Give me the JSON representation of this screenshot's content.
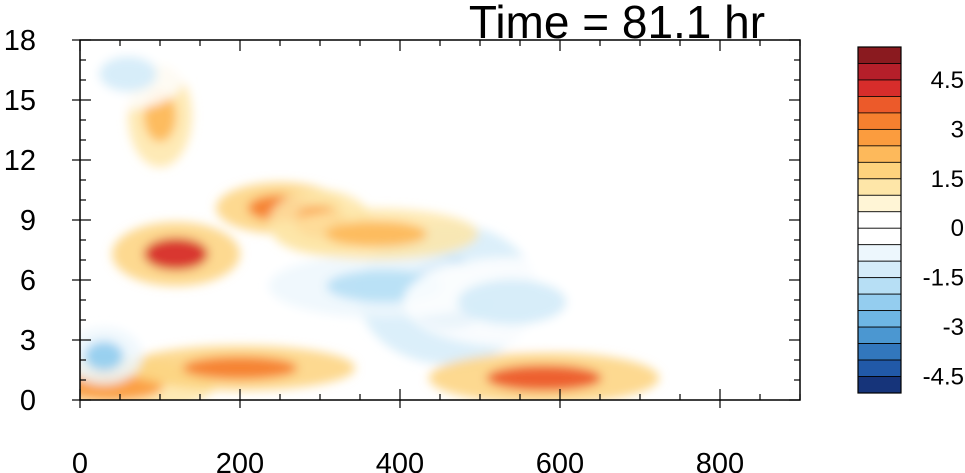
{
  "chart_data": {
    "type": "heatmap",
    "title": "Time = 81.1 hr",
    "xlabel": "",
    "ylabel": "",
    "xlim": [
      0,
      900
    ],
    "ylim": [
      0,
      18
    ],
    "x_ticks": [
      "0",
      "200",
      "400",
      "600",
      "800"
    ],
    "x_tick_values": [
      0,
      200,
      400,
      600,
      800
    ],
    "y_ticks": [
      "0",
      "3",
      "6",
      "9",
      "12",
      "15",
      "18"
    ],
    "y_tick_values": [
      0,
      3,
      6,
      9,
      12,
      15,
      18
    ],
    "grid": false,
    "colorbar": {
      "labels": [
        "4.5",
        "3",
        "1.5",
        "0",
        "-1.5",
        "-3",
        "-4.5"
      ],
      "label_values": [
        4.5,
        3,
        1.5,
        0,
        -1.5,
        -3,
        -4.5
      ],
      "colors_top_to_bottom": [
        "#8a1a1f",
        "#b51f2a",
        "#d72d2b",
        "#ec5a2a",
        "#f6802f",
        "#fb9c3e",
        "#fdb95b",
        "#fdd27d",
        "#fee6a8",
        "#fff5d6",
        "#ffffff",
        "#ffffff",
        "#edf7fd",
        "#d5ecf9",
        "#b7dff5",
        "#94cdef",
        "#6eb6e4",
        "#4b97d1",
        "#3277bd",
        "#2159a8",
        "#16347a"
      ]
    },
    "features": [
      {
        "x": 460,
        "y": 5.3,
        "value": -2.8
      },
      {
        "x": 380,
        "y": 5.7,
        "value": -2.0
      },
      {
        "x": 540,
        "y": 4.9,
        "value": -1.5
      },
      {
        "x": 120,
        "y": 7.3,
        "value": 3.8
      },
      {
        "x": 250,
        "y": 9.6,
        "value": 3.2
      },
      {
        "x": 300,
        "y": 8.9,
        "value": 2.6
      },
      {
        "x": 370,
        "y": 8.3,
        "value": 2.2
      },
      {
        "x": 40,
        "y": 0.7,
        "value": 2.6
      },
      {
        "x": 200,
        "y": 1.6,
        "value": 3.0
      },
      {
        "x": 580,
        "y": 1.1,
        "value": 3.6
      },
      {
        "x": 30,
        "y": 2.2,
        "value": -2.6
      },
      {
        "x": 100,
        "y": 14.2,
        "value": 2.0
      },
      {
        "x": 60,
        "y": 16.3,
        "value": -1.6
      }
    ]
  }
}
